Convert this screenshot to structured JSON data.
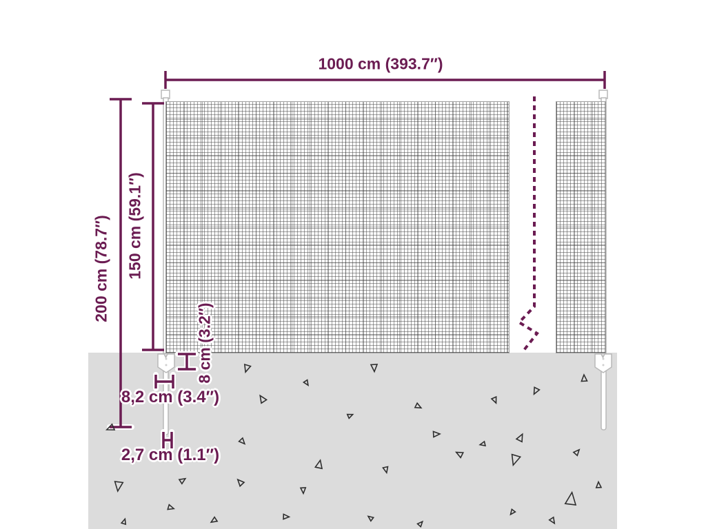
{
  "diagram": {
    "title": "wire-mesh-fence-dimension-diagram",
    "colors": {
      "dimension": "#6b1c52",
      "ground": "#dcdcdc",
      "mesh_line": "#505050",
      "post_stroke": "#b8b8b8",
      "triangle": "#2e2e2e"
    },
    "labels": {
      "total_width": "1000 cm (393.7″)",
      "total_height": "200 cm (78.7″)",
      "mesh_height": "150 cm (59.1″)",
      "clip_height": "8 cm (3.2″)",
      "clip_width": "8,2 cm (3.4″)",
      "spike_width": "2,7 cm (1.1″)"
    },
    "ground": {
      "triangles": [
        [
          299,
          532,
          9,
          10
        ],
        [
          358,
          535,
          10,
          200
        ],
        [
          543,
          534,
          10,
          180
        ],
        [
          445,
          556,
          7,
          150
        ],
        [
          380,
          579,
          10,
          330
        ],
        [
          718,
          581,
          8,
          160
        ],
        [
          777,
          568,
          9,
          210
        ],
        [
          607,
          590,
          8,
          120
        ],
        [
          508,
          603,
          7,
          70
        ],
        [
          847,
          549,
          9,
          0
        ],
        [
          160,
          622,
          10,
          250
        ],
        [
          352,
          641,
          8,
          140
        ],
        [
          633,
          630,
          9,
          90
        ],
        [
          755,
          635,
          10,
          30
        ],
        [
          463,
          674,
          11,
          15
        ],
        [
          560,
          682,
          8,
          170
        ],
        [
          666,
          659,
          9,
          300
        ],
        [
          837,
          656,
          8,
          45
        ],
        [
          747,
          668,
          14,
          200
        ],
        [
          700,
          645,
          7,
          260
        ],
        [
          868,
          704,
          8,
          0
        ],
        [
          828,
          724,
          17,
          10
        ],
        [
          743,
          744,
          7,
          220
        ],
        [
          802,
          756,
          8,
          150
        ],
        [
          172,
          706,
          13,
          190
        ],
        [
          265,
          697,
          8,
          60
        ],
        [
          348,
          700,
          9,
          320
        ],
        [
          248,
          737,
          8,
          110
        ],
        [
          180,
          757,
          7,
          20
        ],
        [
          310,
          756,
          8,
          240
        ],
        [
          415,
          750,
          8,
          95
        ],
        [
          537,
          752,
          7,
          310
        ],
        [
          610,
          760,
          7,
          45
        ],
        [
          440,
          712,
          8,
          180
        ]
      ]
    }
  }
}
